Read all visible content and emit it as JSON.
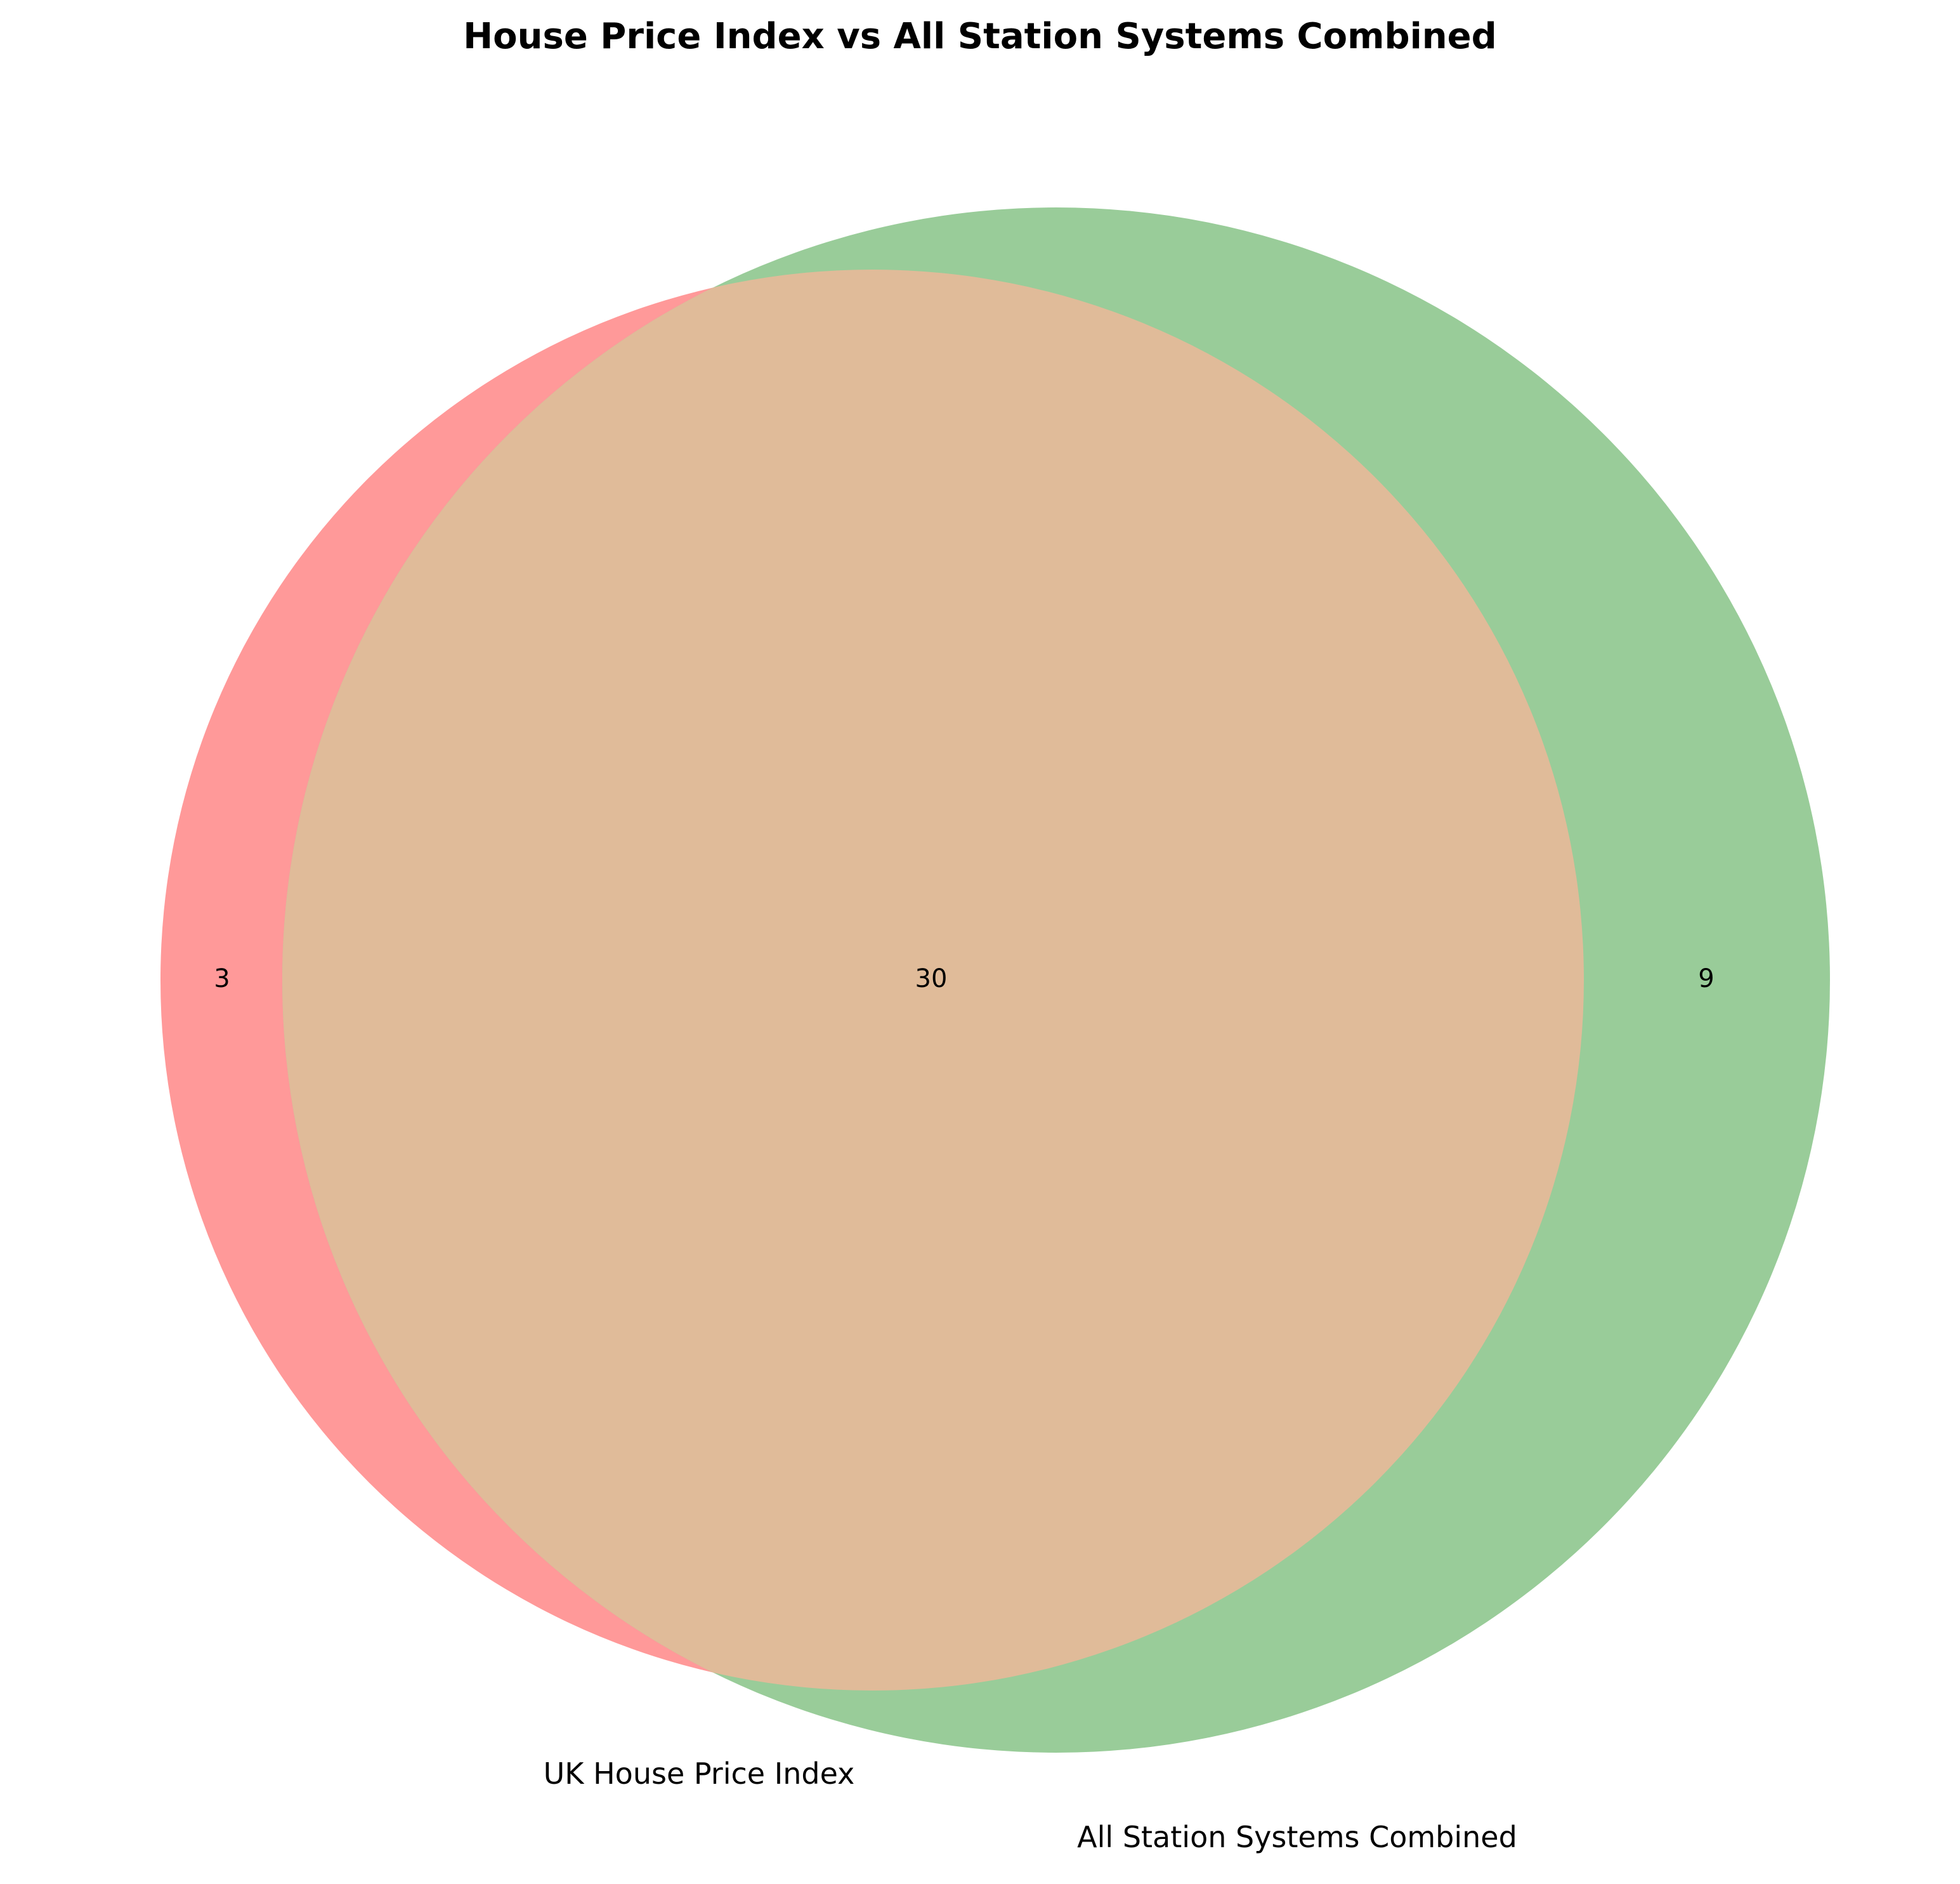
{
  "chart_data": {
    "type": "venn",
    "title": "House Price Index vs All Station Systems Combined",
    "sets": [
      {
        "name": "UK House Price Index",
        "color": "#ff9999"
      },
      {
        "name": "All Station Systems Combined",
        "color": "#99cc99"
      }
    ],
    "regions": {
      "only_a": 3,
      "intersection": 30,
      "only_b": 9
    },
    "intersection_color": "#e0bb99"
  }
}
